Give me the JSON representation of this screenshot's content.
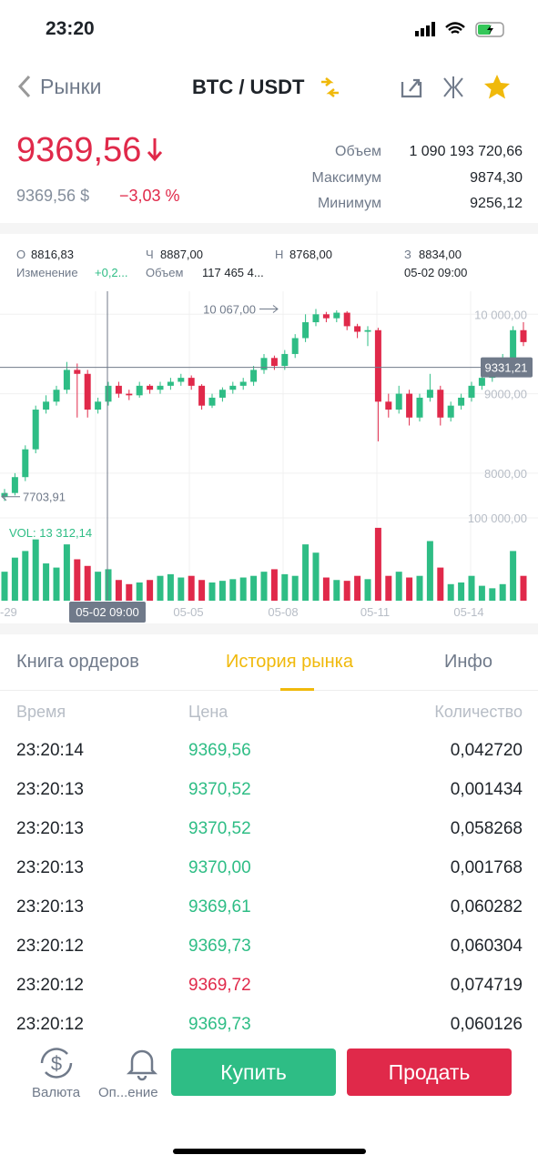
{
  "status": {
    "time": "23:20"
  },
  "nav": {
    "back": "Рынки",
    "pair": "BTC / USDT"
  },
  "price": {
    "last": "9369,56",
    "fiat": "9369,56 $",
    "change": "−3,03 %"
  },
  "stats": [
    {
      "label": "Объем",
      "value": "1 090 193 720,66"
    },
    {
      "label": "Максимум",
      "value": "9874,30"
    },
    {
      "label": "Минимум",
      "value": "9256,12"
    }
  ],
  "ohlc": {
    "items": [
      {
        "label": "О",
        "value": "8816,83"
      },
      {
        "label": "Ч",
        "value": "8887,00"
      },
      {
        "label": "Н",
        "value": "8768,00"
      },
      {
        "label": "З",
        "value": "8834,00"
      }
    ],
    "change_label": "Изменение",
    "change_value": "+0,2...",
    "volume_label": "Объем",
    "volume_value": "117 465 4...",
    "date": "05-02 09:00"
  },
  "chart": {
    "type": "candlestick",
    "ylim": [
      7540,
      10290
    ],
    "yticks": [
      {
        "value": 10000,
        "label": "10 000,00"
      },
      {
        "value": 9000,
        "label": "9000,00"
      },
      {
        "value": 8000,
        "label": "8000,00"
      }
    ],
    "current": {
      "value": 9331.21,
      "label": "9331,21"
    },
    "max": {
      "value": 10067,
      "label": "10 067,00"
    },
    "min": {
      "value": 7703.91,
      "label": "7703,91"
    },
    "up_color": "#2ebd85",
    "down_color": "#e0294a",
    "candles": [
      [
        7700,
        7800,
        7650,
        7750
      ],
      [
        7750,
        8000,
        7720,
        7950
      ],
      [
        7950,
        8350,
        7900,
        8300
      ],
      [
        8300,
        8850,
        8250,
        8800
      ],
      [
        8800,
        8980,
        8750,
        8900
      ],
      [
        8900,
        9100,
        8850,
        9050
      ],
      [
        9050,
        9400,
        9000,
        9300
      ],
      [
        9300,
        9380,
        8700,
        9250
      ],
      [
        9250,
        9300,
        8700,
        8800
      ],
      [
        8800,
        8950,
        8750,
        8900
      ],
      [
        8900,
        9150,
        8850,
        9100
      ],
      [
        9100,
        9150,
        8950,
        9000
      ],
      [
        9000,
        9050,
        8920,
        8980
      ],
      [
        8980,
        9150,
        8950,
        9100
      ],
      [
        9100,
        9120,
        9000,
        9050
      ],
      [
        9050,
        9150,
        9000,
        9100
      ],
      [
        9100,
        9200,
        9050,
        9150
      ],
      [
        9150,
        9250,
        9100,
        9200
      ],
      [
        9200,
        9230,
        9050,
        9100
      ],
      [
        9100,
        9120,
        8800,
        8850
      ],
      [
        8850,
        9000,
        8820,
        8950
      ],
      [
        8950,
        9080,
        8900,
        9050
      ],
      [
        9050,
        9150,
        9000,
        9100
      ],
      [
        9100,
        9200,
        9050,
        9150
      ],
      [
        9150,
        9350,
        9100,
        9300
      ],
      [
        9300,
        9500,
        9250,
        9450
      ],
      [
        9450,
        9480,
        9300,
        9350
      ],
      [
        9350,
        9550,
        9300,
        9500
      ],
      [
        9500,
        9750,
        9450,
        9700
      ],
      [
        9700,
        10000,
        9650,
        9900
      ],
      [
        9900,
        10067,
        9850,
        10000
      ],
      [
        10000,
        10030,
        9900,
        9950
      ],
      [
        9950,
        10050,
        9900,
        10020
      ],
      [
        10020,
        10040,
        9800,
        9850
      ],
      [
        9850,
        9880,
        9700,
        9780
      ],
      [
        9780,
        9850,
        9600,
        9800
      ],
      [
        9800,
        9830,
        8400,
        8900
      ],
      [
        8900,
        9000,
        8700,
        8800
      ],
      [
        8800,
        9100,
        8750,
        9000
      ],
      [
        9000,
        9050,
        8600,
        8700
      ],
      [
        8700,
        9000,
        8650,
        8950
      ],
      [
        8950,
        9250,
        8900,
        9050
      ],
      [
        9050,
        9100,
        8600,
        8700
      ],
      [
        8700,
        8900,
        8650,
        8850
      ],
      [
        8850,
        9000,
        8800,
        8950
      ],
      [
        8950,
        9150,
        8900,
        9100
      ],
      [
        9100,
        9250,
        9050,
        9200
      ],
      [
        9200,
        9350,
        9150,
        9300
      ],
      [
        9300,
        9500,
        9250,
        9450
      ],
      [
        9450,
        9850,
        9400,
        9800
      ],
      [
        9800,
        9900,
        9600,
        9650
      ]
    ],
    "volume_label": "VOL: 13 312,14",
    "volume_ylim": [
      0,
      100000
    ],
    "volume_tick": {
      "value": 100000,
      "label": "100 000,00"
    },
    "volumes": [
      35000,
      52000,
      60000,
      74000,
      45000,
      40000,
      68000,
      50000,
      42000,
      35000,
      38000,
      25000,
      20000,
      22000,
      25000,
      30000,
      32000,
      28000,
      30000,
      25000,
      22000,
      24000,
      26000,
      28000,
      30000,
      35000,
      38000,
      32000,
      30000,
      68000,
      58000,
      28000,
      25000,
      24000,
      30000,
      26000,
      88000,
      30000,
      35000,
      28000,
      30000,
      72000,
      40000,
      20000,
      22000,
      30000,
      18000,
      15000,
      20000,
      60000,
      30000
    ],
    "dates": [
      "-29",
      "05-05",
      "05-08",
      "05-11",
      "05-14"
    ]
  },
  "tabs": {
    "items": [
      "Книга ордеров",
      "История рынка",
      "Инфо"
    ],
    "active": 1
  },
  "table": {
    "header": [
      "Время",
      "Цена",
      "Количество"
    ],
    "rows": [
      {
        "time": "23:20:14",
        "price": "9369,56",
        "qty": "0,042720",
        "color": "#2ebd85"
      },
      {
        "time": "23:20:13",
        "price": "9370,52",
        "qty": "0,001434",
        "color": "#2ebd85"
      },
      {
        "time": "23:20:13",
        "price": "9370,52",
        "qty": "0,058268",
        "color": "#2ebd85"
      },
      {
        "time": "23:20:13",
        "price": "9370,00",
        "qty": "0,001768",
        "color": "#2ebd85"
      },
      {
        "time": "23:20:13",
        "price": "9369,61",
        "qty": "0,060282",
        "color": "#2ebd85"
      },
      {
        "time": "23:20:12",
        "price": "9369,73",
        "qty": "0,060304",
        "color": "#2ebd85"
      },
      {
        "time": "23:20:12",
        "price": "9369,72",
        "qty": "0,074719",
        "color": "#e0294a"
      },
      {
        "time": "23:20:12",
        "price": "9369,73",
        "qty": "0,060126",
        "color": "#2ebd85"
      }
    ]
  },
  "bottom": {
    "currency": "Валюта",
    "alerts": "Оп...ение",
    "buy": "Купить",
    "sell": "Продать"
  }
}
